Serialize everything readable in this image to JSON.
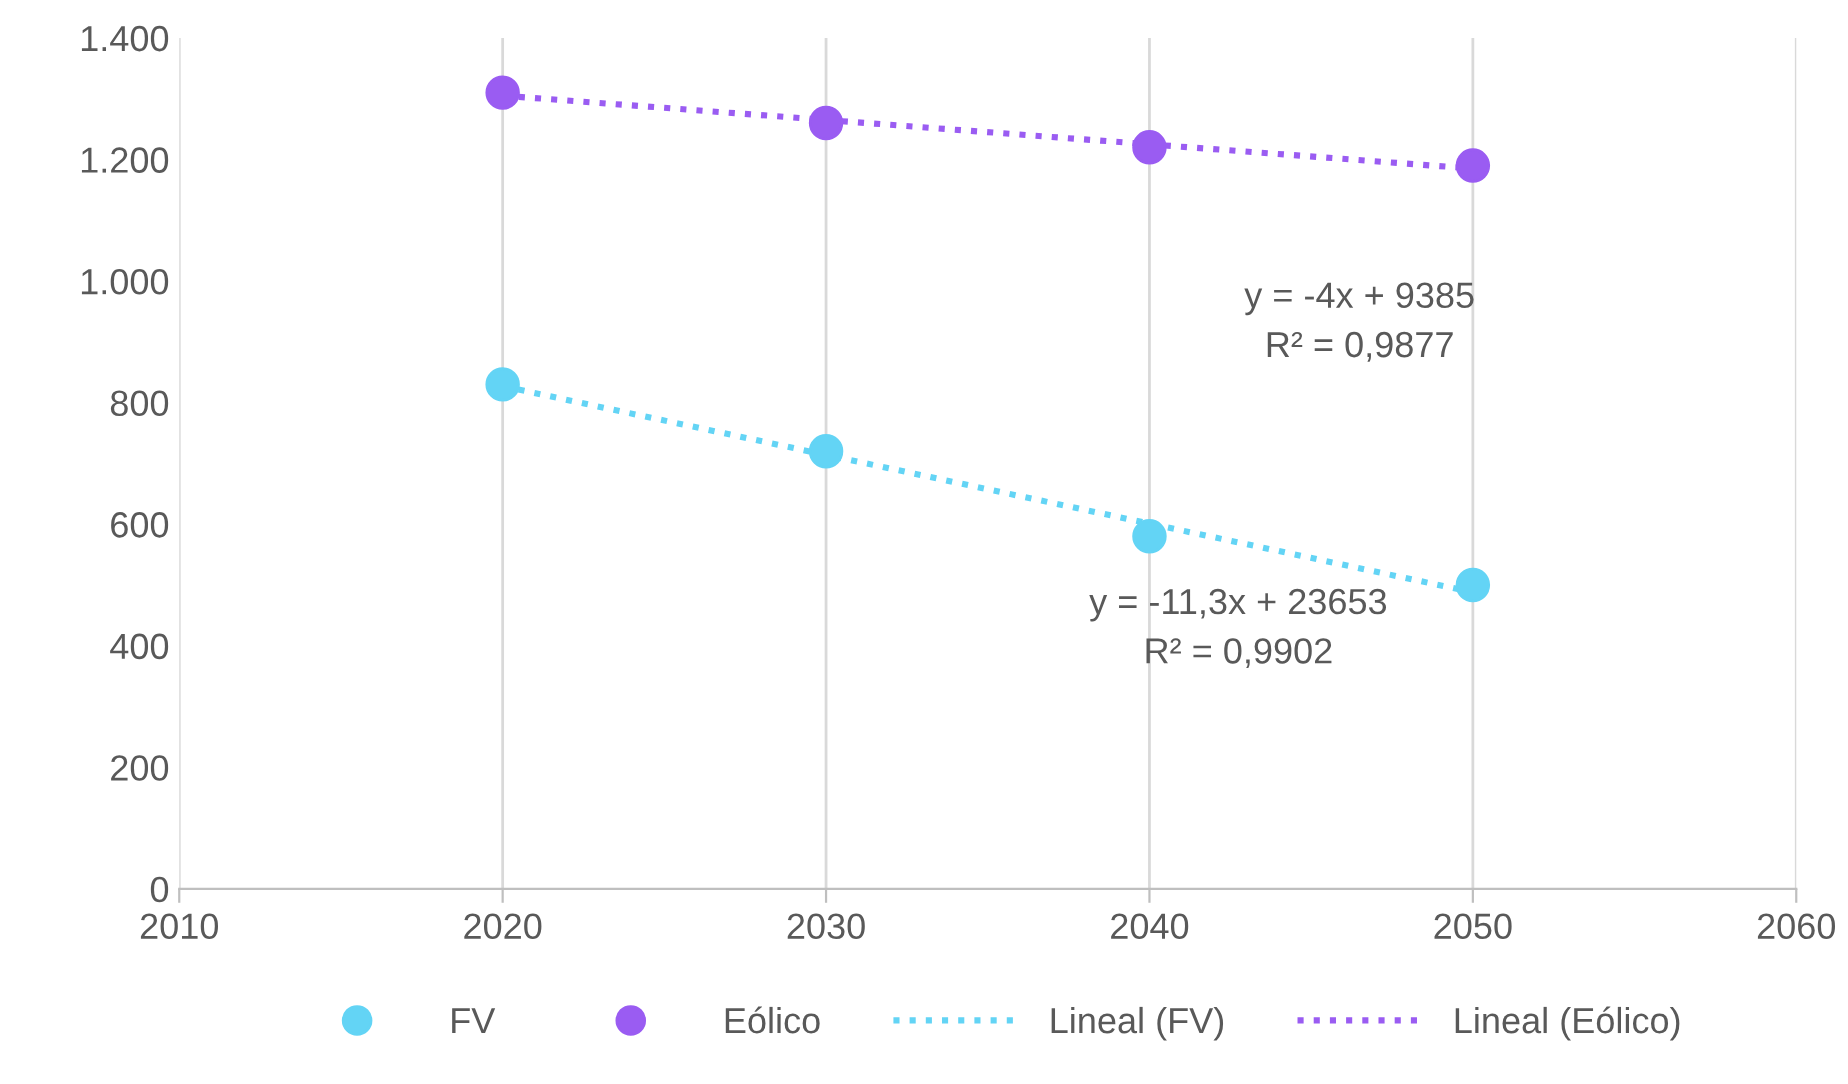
{
  "chart_data": {
    "type": "scatter",
    "xlim": [
      2010,
      2060
    ],
    "xticks": [
      2010,
      2020,
      2030,
      2040,
      2050,
      2060
    ],
    "ylim": [
      0,
      1400
    ],
    "yticks": [
      0,
      200,
      400,
      600,
      800,
      {
        "value": 1000,
        "label": "1.000"
      },
      {
        "value": 1200,
        "label": "1.200"
      },
      {
        "value": 1400,
        "label": "1.400"
      }
    ],
    "grid": "x",
    "legend": "bottom",
    "series": [
      {
        "name": "FV",
        "color": "#63d4f5",
        "marker": "circle",
        "x": [
          2020,
          2030,
          2040,
          2050
        ],
        "values": [
          830,
          720,
          580,
          500
        ]
      },
      {
        "name": "Eólico",
        "color": "#9a5cf2",
        "marker": "circle",
        "x": [
          2020,
          2030,
          2040,
          2050
        ],
        "values": [
          1310,
          1260,
          1220,
          1190
        ]
      },
      {
        "name": "Lineal (FV)",
        "type": "line",
        "color": "#63d4f5",
        "line_style": "dotted",
        "x": [
          2020,
          2050
        ],
        "values": [
          827,
          488
        ]
      },
      {
        "name": "Lineal (Eólico)",
        "type": "line",
        "color": "#9a5cf2",
        "line_style": "dotted",
        "x": [
          2020,
          2050
        ],
        "values": [
          1305,
          1185
        ]
      }
    ],
    "annotations": [
      "y = -4x + 9385\nR² = 0,9877",
      "y = -11,3x + 23653\nR² = 0,9902"
    ]
  }
}
